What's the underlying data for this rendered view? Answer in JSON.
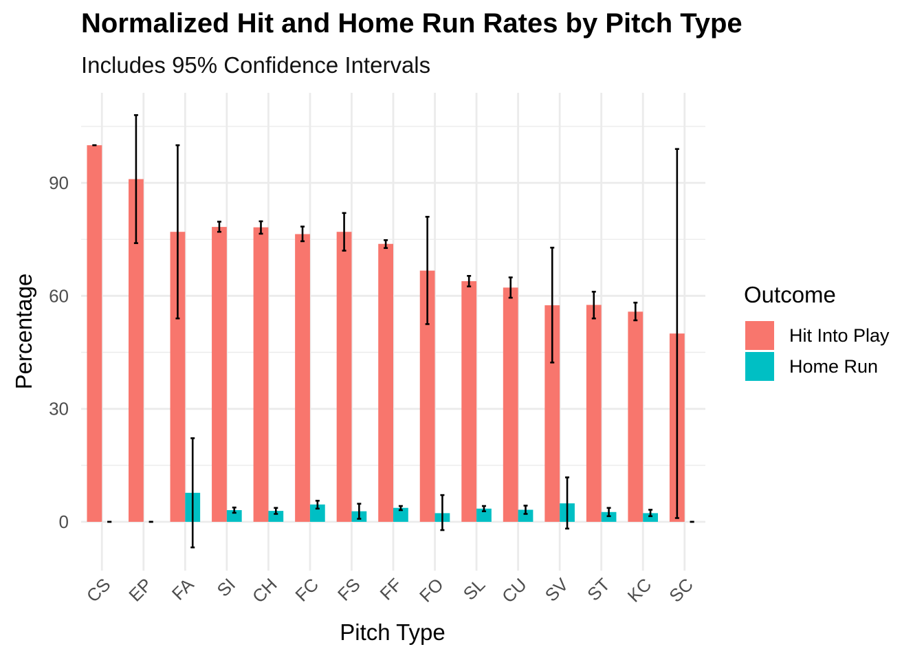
{
  "chart_data": {
    "type": "bar",
    "title": "Normalized Hit and Home Run Rates by Pitch Type",
    "subtitle": "Includes 95% Confidence Intervals",
    "xlabel": "Pitch Type",
    "ylabel": "Percentage",
    "ylim": [
      -12.5,
      114
    ],
    "y_ticks": [
      0,
      30,
      60,
      90
    ],
    "grid": true,
    "legend_title": "Outcome",
    "legend_position": "right",
    "categories": [
      "CS",
      "EP",
      "FA",
      "SI",
      "CH",
      "FC",
      "FS",
      "FF",
      "FO",
      "SL",
      "CU",
      "SV",
      "ST",
      "KC",
      "SC"
    ],
    "series": [
      {
        "name": "Hit Into Play",
        "color": "#F8766D",
        "values": [
          100,
          91,
          77,
          78.3,
          78.2,
          76.4,
          77,
          73.8,
          66.7,
          63.9,
          62.2,
          57.5,
          57.6,
          55.8,
          50
        ],
        "ci_lower": [
          100,
          74,
          54,
          77,
          76.5,
          74.5,
          72,
          72.7,
          52.5,
          62.5,
          59.5,
          42.3,
          54,
          53.5,
          1
        ],
        "ci_upper": [
          100,
          108,
          100,
          79.7,
          79.8,
          78.4,
          82,
          74.8,
          81,
          65.3,
          64.9,
          72.8,
          61.1,
          58.2,
          99
        ]
      },
      {
        "name": "Home Run",
        "color": "#00BFC4",
        "values": [
          0,
          0,
          7.7,
          3.1,
          2.9,
          4.6,
          2.8,
          3.7,
          2.3,
          3.5,
          3.2,
          4.9,
          2.6,
          2.3,
          0
        ],
        "ci_lower": [
          0,
          0,
          -6.8,
          2.4,
          2.1,
          3.5,
          0.8,
          3.1,
          -2.2,
          2.8,
          2.1,
          -1.8,
          1.5,
          1.5,
          0
        ],
        "ci_upper": [
          0,
          0,
          22.2,
          3.8,
          3.7,
          5.6,
          4.8,
          4.2,
          7.1,
          4.2,
          4.3,
          11.8,
          3.7,
          3.2,
          0
        ]
      }
    ]
  }
}
